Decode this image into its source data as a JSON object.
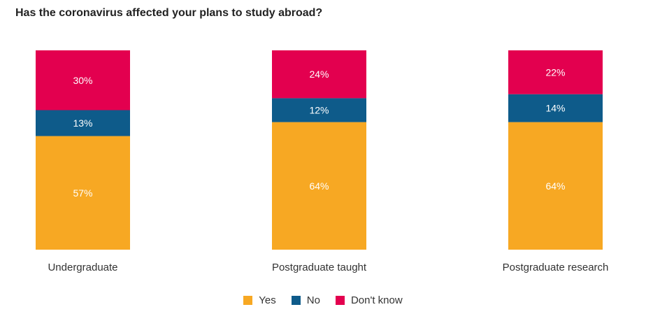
{
  "chart_data": {
    "type": "bar",
    "stacked": true,
    "title": "Has the coronavirus affected your plans to study abroad?",
    "categories": [
      "Undergraduate",
      "Postgraduate taught",
      "Postgraduate research"
    ],
    "series": [
      {
        "name": "Yes",
        "values": [
          57,
          64,
          64
        ],
        "color": "#F7A823"
      },
      {
        "name": "No",
        "values": [
          13,
          12,
          14
        ],
        "color": "#0E5B8A"
      },
      {
        "name": "Don't know",
        "values": [
          30,
          24,
          22
        ],
        "color": "#E3004F"
      }
    ],
    "value_suffix": "%",
    "ylim": [
      0,
      100
    ],
    "grid": false,
    "legend_position": "bottom-center"
  }
}
